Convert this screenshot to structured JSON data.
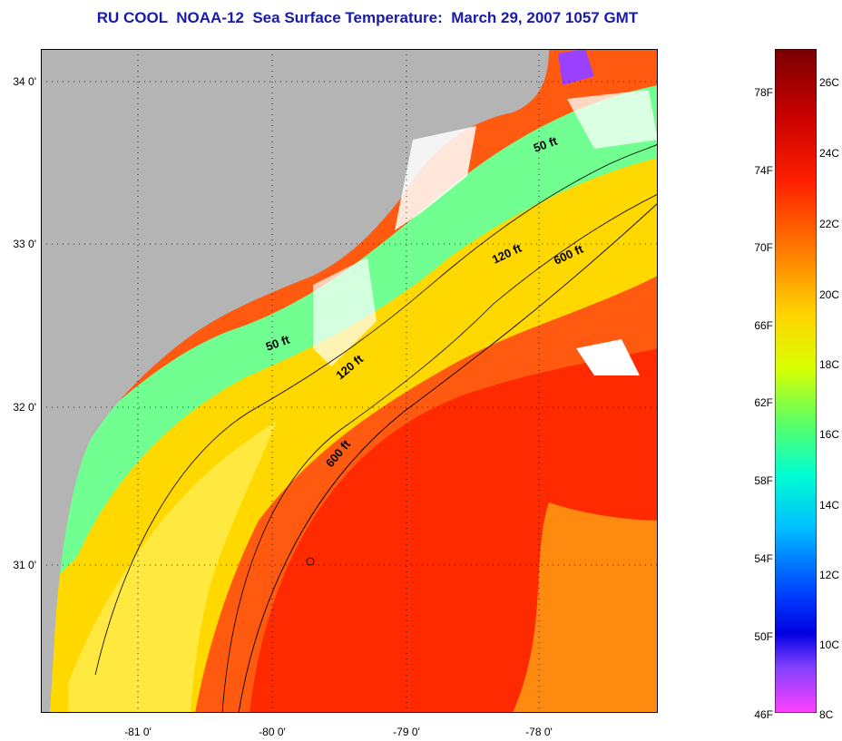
{
  "title": "RU COOL  NOAA-12  Sea Surface Temperature:  March 29, 2007 1057 GMT",
  "map": {
    "lat_labels": [
      "34 0'",
      "33 0'",
      "32 0'",
      "31 0'"
    ],
    "lon_labels": [
      "-81 0'",
      "-80 0'",
      "-79 0'",
      "-78 0'"
    ],
    "contour_labels": [
      "50 ft",
      "120 ft",
      "600 ft",
      "50 ft",
      "120 ft",
      "600 ft"
    ],
    "land_color": "#b4b4b4",
    "cloud_color": "#ffffff"
  },
  "colorbar": {
    "fahrenheit_labels": [
      "78F",
      "74F",
      "70F",
      "66F",
      "62F",
      "58F",
      "54F",
      "50F",
      "46F"
    ],
    "celsius_labels": [
      "26C",
      "24C",
      "22C",
      "20C",
      "18C",
      "16C",
      "14C",
      "12C",
      "10C",
      "8C"
    ],
    "gradient_colors": [
      "#7a0000",
      "#d40000",
      "#ff2000",
      "#ff7a00",
      "#ffd400",
      "#d4ff00",
      "#60ff60",
      "#00ffd0",
      "#00c0ff",
      "#0040ff",
      "#0000e0",
      "#8040ff",
      "#ff40ff"
    ]
  }
}
